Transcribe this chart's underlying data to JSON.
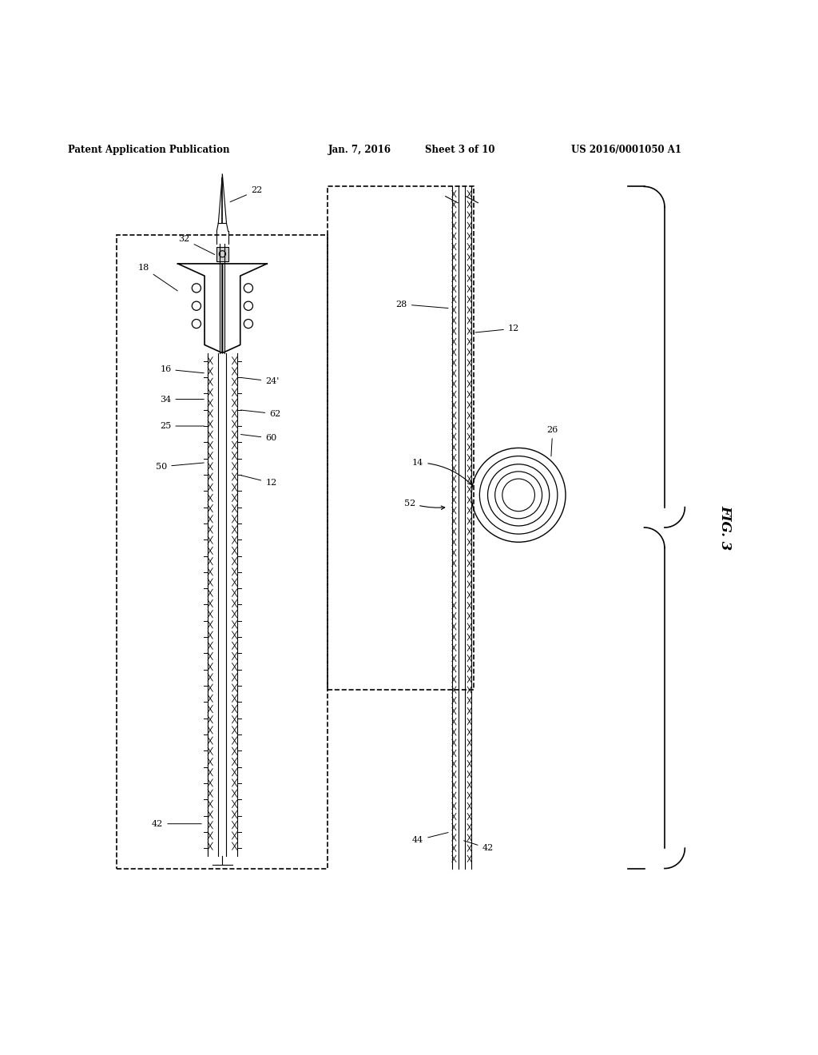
{
  "bg_color": "#ffffff",
  "line_color": "#000000",
  "header_text": "Patent Application Publication",
  "header_date": "Jan. 7, 2016",
  "header_sheet": "Sheet 3 of 10",
  "header_patent": "US 2016/0001050 A1",
  "fig_label": "FIG. 3",
  "fig_width": 10.24,
  "fig_height": 13.2
}
